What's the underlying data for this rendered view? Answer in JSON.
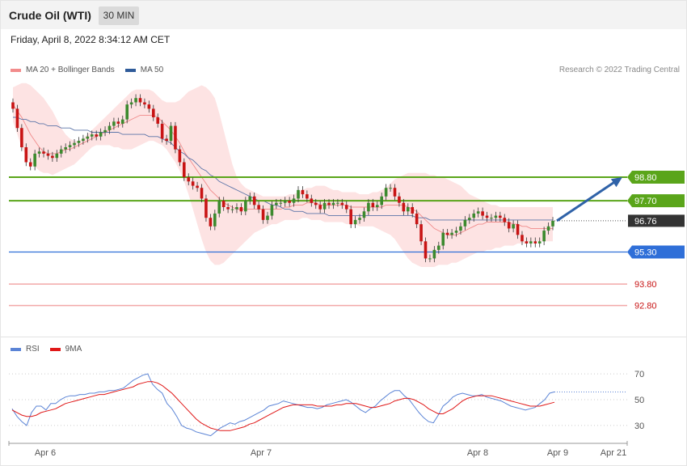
{
  "header": {
    "title": "Crude Oil (WTI)",
    "timeframe": "30 MIN"
  },
  "datetime": "Friday, April 8, 2022 8:34:12 AM CET",
  "legend_main": [
    {
      "label": "MA 20 + Bollinger Bands",
      "color": "#f28c8c"
    },
    {
      "label": "MA 50",
      "color": "#2f5b9a"
    }
  ],
  "research_note": "Research © 2022 Trading Central",
  "legend_rsi": [
    {
      "label": "RSI",
      "color": "#5b84d6"
    },
    {
      "label": "9MA",
      "color": "#e01818"
    }
  ],
  "colors": {
    "up_candle": "#3c8a2e",
    "down_candle": "#c81414",
    "band_fill": "#fde3e3",
    "ma20": "#f08a8a",
    "ma50": "#5b74a8",
    "green_level": "#5aa51a",
    "blue_level": "#2f6fd8",
    "red_level": "#f2a8a8",
    "current_label": "#333333",
    "arrow": "#2f62a8"
  },
  "chart_data": [
    {
      "type": "candlestick",
      "title": "Crude Oil (WTI)",
      "timeframe": "30 MIN",
      "ylim": [
        91.8,
        103.0
      ],
      "x_ticks": [
        "Apr 6",
        "Apr 7",
        "Apr 8",
        "Apr 9",
        "Apr 21"
      ],
      "levels": [
        {
          "value": 98.8,
          "label": "98.80",
          "kind": "resistance"
        },
        {
          "value": 97.7,
          "label": "97.70",
          "kind": "resistance"
        },
        {
          "value": 96.76,
          "label": "96.76",
          "kind": "current"
        },
        {
          "value": 95.3,
          "label": "95.30",
          "kind": "support"
        },
        {
          "value": 93.8,
          "label": "93.80",
          "kind": "support-2"
        },
        {
          "value": 92.8,
          "label": "92.80",
          "kind": "support-3"
        }
      ],
      "arrow": {
        "from": 96.76,
        "to": 98.8
      },
      "close": [
        102.0,
        101.1,
        100.2,
        99.5,
        99.3,
        99.9,
        100.0,
        99.9,
        99.8,
        99.7,
        99.9,
        100.1,
        100.2,
        100.3,
        100.4,
        100.5,
        100.6,
        100.7,
        100.8,
        100.7,
        100.9,
        101.0,
        101.2,
        101.4,
        101.3,
        101.5,
        102.2,
        102.3,
        102.5,
        102.3,
        102.2,
        102.0,
        101.6,
        101.3,
        100.6,
        100.5,
        101.2,
        100.1,
        99.5,
        98.8,
        98.6,
        98.4,
        98.3,
        97.8,
        96.9,
        96.5,
        97.1,
        97.7,
        97.4,
        97.3,
        97.3,
        97.4,
        97.2,
        97.7,
        97.9,
        97.5,
        97.3,
        96.8,
        97.0,
        97.5,
        97.6,
        97.6,
        97.7,
        97.6,
        97.8,
        98.2,
        98.0,
        97.8,
        97.6,
        97.5,
        97.3,
        97.6,
        97.5,
        97.6,
        97.6,
        97.5,
        97.3,
        96.6,
        96.8,
        96.9,
        97.2,
        97.6,
        97.4,
        97.5,
        97.9,
        98.3,
        98.3,
        97.9,
        97.6,
        97.2,
        97.4,
        97.1,
        96.6,
        95.8,
        95.0,
        95.0,
        95.4,
        95.6,
        96.2,
        96.1,
        96.2,
        96.3,
        96.5,
        96.8,
        96.9,
        97.1,
        97.2,
        97.0,
        96.9,
        96.9,
        97.0,
        96.9,
        96.7,
        96.4,
        96.6,
        96.1,
        95.8,
        95.7,
        95.8,
        95.7,
        95.8,
        96.3,
        96.5,
        96.76
      ],
      "ma20": [
        102.2,
        101.9,
        101.6,
        101.2,
        100.8,
        100.5,
        100.2,
        100.0,
        99.9,
        99.9,
        99.9,
        100.0,
        100.1,
        100.1,
        100.2,
        100.3,
        100.4,
        100.5,
        100.6,
        100.7,
        100.8,
        100.9,
        101.0,
        101.1,
        101.2,
        101.3,
        101.4,
        101.5,
        101.6,
        101.7,
        101.7,
        101.7,
        101.7,
        101.6,
        101.4,
        101.2,
        101.0,
        100.7,
        100.4,
        100.0,
        99.7,
        99.4,
        99.1,
        98.8,
        98.5,
        98.2,
        98.0,
        97.8,
        97.6,
        97.5,
        97.4,
        97.3,
        97.3,
        97.3,
        97.3,
        97.3,
        97.3,
        97.3,
        97.3,
        97.3,
        97.3,
        97.3,
        97.4,
        97.4,
        97.5,
        97.5,
        97.5,
        97.6,
        97.6,
        97.6,
        97.5,
        97.5,
        97.5,
        97.5,
        97.5,
        97.5,
        97.5,
        97.4,
        97.4,
        97.4,
        97.4,
        97.4,
        97.4,
        97.4,
        97.4,
        97.5,
        97.5,
        97.5,
        97.5,
        97.5,
        97.4,
        97.3,
        97.2,
        97.0,
        96.8,
        96.6,
        96.4,
        96.3,
        96.2,
        96.1,
        96.1,
        96.1,
        96.2,
        96.3,
        96.4,
        96.5,
        96.6,
        96.6,
        96.7,
        96.7,
        96.7,
        96.7,
        96.7,
        96.7,
        96.6,
        96.6,
        96.5,
        96.5,
        96.4,
        96.4,
        96.4,
        96.4,
        96.4,
        96.4
      ],
      "bb_upper": [
        103.0,
        103.1,
        103.2,
        103.2,
        103.1,
        102.9,
        102.7,
        102.5,
        102.2,
        101.9,
        101.5,
        101.1,
        100.8,
        100.6,
        100.5,
        100.5,
        100.6,
        100.8,
        101.0,
        101.2,
        101.4,
        101.6,
        101.8,
        102.0,
        102.2,
        102.4,
        102.6,
        102.8,
        102.9,
        102.9,
        102.9,
        102.9,
        102.8,
        102.6,
        102.4,
        102.3,
        102.3,
        102.3,
        102.4,
        102.6,
        102.8,
        102.9,
        103.0,
        103.1,
        103.0,
        102.8,
        102.5,
        101.8,
        101.0,
        100.2,
        99.4,
        98.8,
        98.5,
        98.3,
        98.2,
        98.1,
        98.0,
        97.9,
        97.9,
        97.9,
        97.9,
        97.9,
        97.9,
        98.0,
        98.0,
        98.1,
        98.2,
        98.3,
        98.3,
        98.4,
        98.4,
        98.4,
        98.3,
        98.2,
        98.2,
        98.1,
        98.1,
        98.1,
        98.1,
        98.0,
        98.0,
        98.0,
        98.1,
        98.1,
        98.2,
        98.3,
        98.5,
        98.7,
        98.8,
        98.9,
        99.0,
        99.0,
        99.0,
        99.0,
        99.0,
        98.9,
        98.9,
        98.8,
        98.8,
        98.7,
        98.6,
        98.5,
        98.4,
        98.2,
        98.0,
        97.9,
        97.8,
        97.7,
        97.6,
        97.5,
        97.5,
        97.4,
        97.4,
        97.4,
        97.4,
        97.4,
        97.4,
        97.4,
        97.4,
        97.4,
        97.4,
        97.4,
        97.4,
        97.4
      ],
      "bb_lower": [
        101.4,
        100.8,
        100.2,
        99.8,
        99.5,
        99.3,
        99.1,
        99.0,
        99.0,
        98.9,
        99.0,
        99.1,
        99.2,
        99.3,
        99.4,
        99.6,
        99.8,
        100.0,
        100.2,
        100.3,
        100.3,
        100.3,
        100.3,
        100.2,
        100.2,
        100.1,
        100.1,
        100.1,
        100.2,
        100.3,
        100.4,
        100.5,
        100.5,
        100.4,
        100.3,
        100.1,
        99.8,
        99.5,
        99.1,
        98.6,
        98.0,
        97.3,
        96.6,
        95.9,
        95.3,
        94.9,
        94.7,
        94.7,
        94.8,
        95.0,
        95.2,
        95.4,
        95.6,
        95.8,
        96.0,
        96.2,
        96.3,
        96.4,
        96.5,
        96.6,
        96.6,
        96.7,
        96.8,
        96.8,
        96.8,
        96.8,
        96.9,
        96.9,
        96.8,
        96.8,
        96.8,
        96.7,
        96.7,
        96.7,
        96.7,
        96.7,
        96.6,
        96.6,
        96.6,
        96.5,
        96.5,
        96.5,
        96.5,
        96.4,
        96.3,
        96.2,
        96.1,
        95.9,
        95.6,
        95.3,
        95.0,
        94.8,
        94.7,
        94.6,
        94.6,
        94.6,
        94.6,
        94.7,
        94.7,
        94.7,
        94.8,
        94.8,
        94.9,
        95.0,
        95.1,
        95.2,
        95.3,
        95.3,
        95.4,
        95.4,
        95.5,
        95.5,
        95.6,
        95.6,
        95.6,
        95.7,
        95.7,
        95.7,
        95.8,
        95.8,
        95.8,
        95.8,
        95.8,
        95.8
      ],
      "ma50": [
        101.6,
        101.6,
        101.5,
        101.5,
        101.4,
        101.4,
        101.3,
        101.3,
        101.2,
        101.2,
        101.2,
        101.1,
        101.1,
        101.1,
        101.0,
        101.0,
        101.0,
        101.0,
        100.9,
        100.9,
        100.9,
        100.9,
        100.9,
        100.9,
        100.9,
        100.8,
        100.8,
        100.8,
        100.8,
        100.8,
        100.8,
        100.7,
        100.7,
        100.7,
        100.6,
        100.5,
        100.4,
        100.2,
        100.0,
        99.9,
        99.7,
        99.6,
        99.4,
        99.2,
        99.1,
        98.9,
        98.8,
        98.6,
        98.5,
        98.4,
        98.3,
        98.2,
        98.1,
        98.0,
        97.9,
        97.8,
        97.7,
        97.7,
        97.6,
        97.5,
        97.5,
        97.4,
        97.3,
        97.3,
        97.2,
        97.2,
        97.2,
        97.1,
        97.1,
        97.1,
        97.1,
        97.1,
        97.0,
        97.0,
        97.0,
        97.0,
        97.0,
        97.0,
        97.0,
        97.0,
        97.0,
        97.0,
        97.0,
        97.0,
        97.0,
        97.0,
        97.0,
        97.0,
        97.0,
        97.0,
        97.0,
        97.0,
        96.9,
        96.9,
        96.9,
        96.8,
        96.8,
        96.8,
        96.8,
        96.8,
        96.8,
        96.8,
        96.8,
        96.8,
        96.8,
        96.8,
        96.8,
        96.8,
        96.8,
        96.8,
        96.8,
        96.8,
        96.8,
        96.8,
        96.8,
        96.8,
        96.8,
        96.8,
        96.8,
        96.8,
        96.8,
        96.8,
        96.8,
        96.8
      ]
    },
    {
      "type": "line",
      "title": "RSI",
      "ylim": [
        18,
        82
      ],
      "y_ticks": [
        30,
        50,
        70
      ],
      "series": [
        {
          "name": "RSI",
          "values": [
            43,
            37,
            33,
            30,
            40,
            45,
            45,
            42,
            47,
            47,
            50,
            52,
            53,
            53,
            54,
            54,
            55,
            55,
            56,
            56,
            57,
            57,
            58,
            59,
            62,
            65,
            67,
            69,
            70,
            62,
            58,
            55,
            47,
            43,
            37,
            30,
            28,
            27,
            25,
            24,
            23,
            22,
            25,
            28,
            30,
            32,
            31,
            33,
            34,
            36,
            38,
            40,
            42,
            45,
            46,
            47,
            49,
            48,
            47,
            46,
            45,
            44,
            44,
            43,
            44,
            46,
            47,
            48,
            49,
            50,
            48,
            45,
            42,
            40,
            43,
            45,
            49,
            52,
            55,
            57,
            57,
            53,
            50,
            45,
            40,
            36,
            33,
            32,
            38,
            45,
            48,
            52,
            54,
            55,
            54,
            53,
            53,
            54,
            52,
            51,
            50,
            49,
            47,
            45,
            44,
            43,
            42,
            43,
            44,
            47,
            50,
            55,
            56
          ]
        },
        {
          "name": "9MA",
          "values": [
            42,
            40,
            38,
            37,
            37,
            38,
            40,
            41,
            42,
            43,
            45,
            47,
            48,
            49,
            50,
            51,
            52,
            53,
            54,
            54,
            55,
            56,
            57,
            58,
            59,
            60,
            62,
            63,
            64,
            64,
            63,
            61,
            58,
            55,
            51,
            47,
            43,
            39,
            35,
            32,
            30,
            28,
            27,
            26,
            26,
            26,
            27,
            28,
            29,
            31,
            32,
            34,
            36,
            38,
            40,
            42,
            44,
            45,
            46,
            46,
            46,
            46,
            46,
            45,
            45,
            45,
            45,
            46,
            46,
            47,
            47,
            47,
            46,
            45,
            44,
            44,
            45,
            46,
            47,
            49,
            50,
            51,
            51,
            50,
            48,
            46,
            43,
            41,
            39,
            39,
            41,
            43,
            46,
            49,
            51,
            52,
            53,
            53,
            53,
            53,
            52,
            51,
            50,
            49,
            48,
            47,
            46,
            45,
            45,
            45,
            46,
            47,
            48
          ]
        }
      ],
      "dotted_projection": true
    }
  ]
}
